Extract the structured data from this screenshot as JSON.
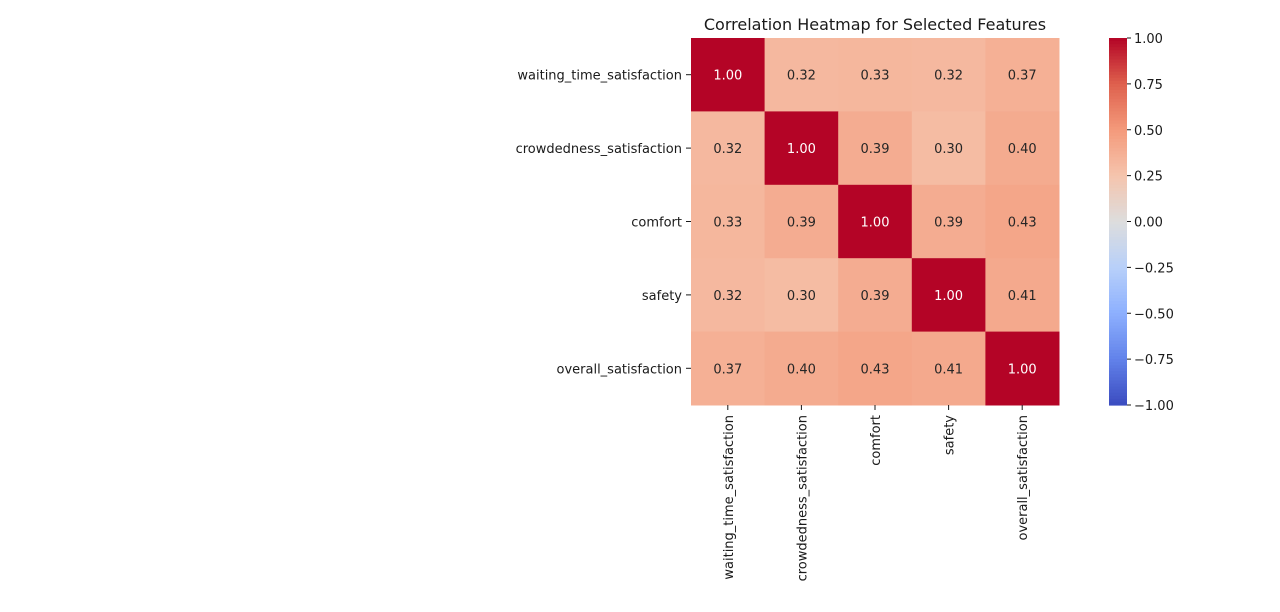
{
  "chart_data": {
    "type": "heatmap",
    "title": "Correlation Heatmap for Selected Features",
    "x_categories": [
      "waiting_time_satisfaction",
      "crowdedness_satisfaction",
      "comfort",
      "safety",
      "overall_satisfaction"
    ],
    "y_categories": [
      "waiting_time_satisfaction",
      "crowdedness_satisfaction",
      "comfort",
      "safety",
      "overall_satisfaction"
    ],
    "values": [
      [
        1.0,
        0.32,
        0.33,
        0.32,
        0.37
      ],
      [
        0.32,
        1.0,
        0.39,
        0.3,
        0.4
      ],
      [
        0.33,
        0.39,
        1.0,
        0.39,
        0.43
      ],
      [
        0.32,
        0.3,
        0.39,
        1.0,
        0.41
      ],
      [
        0.37,
        0.4,
        0.43,
        0.41,
        1.0
      ]
    ],
    "value_labels": [
      [
        "1.00",
        "0.32",
        "0.33",
        "0.32",
        "0.37"
      ],
      [
        "0.32",
        "1.00",
        "0.39",
        "0.30",
        "0.40"
      ],
      [
        "0.33",
        "0.39",
        "1.00",
        "0.39",
        "0.43"
      ],
      [
        "0.32",
        "0.30",
        "0.39",
        "1.00",
        "0.41"
      ],
      [
        "0.37",
        "0.40",
        "0.43",
        "0.41",
        "1.00"
      ]
    ],
    "colormap": "coolwarm",
    "vmin": -1.0,
    "vmax": 1.0,
    "colorbar_ticks": [
      1.0,
      0.75,
      0.5,
      0.25,
      0.0,
      -0.25,
      -0.5,
      -0.75,
      -1.0
    ],
    "colorbar_tick_labels": [
      "1.00",
      "0.75",
      "0.50",
      "0.25",
      "0.00",
      "−0.25",
      "−0.50",
      "−0.75",
      "−1.00"
    ],
    "colorbar_position": "right",
    "grid": false
  }
}
